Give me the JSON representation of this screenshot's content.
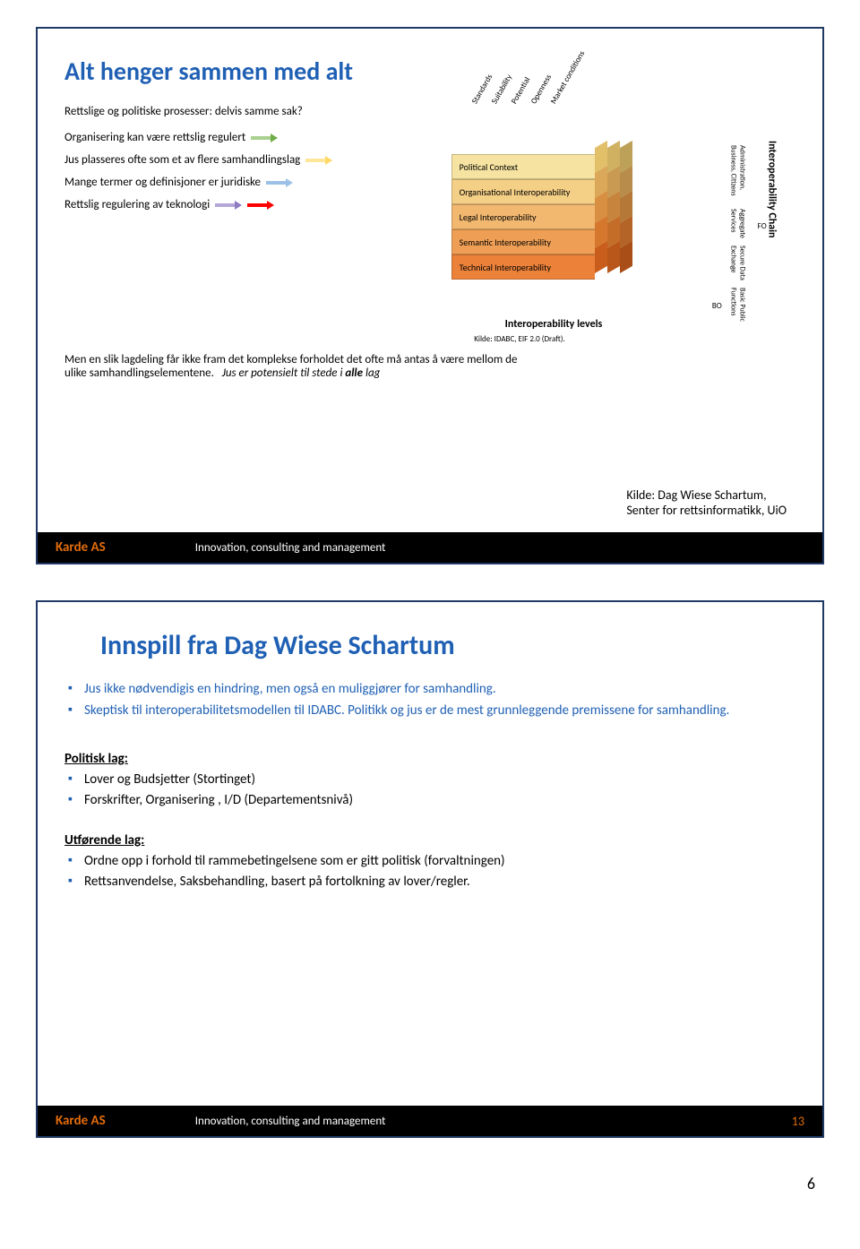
{
  "slide1": {
    "title": "Alt henger sammen med alt",
    "leftLines": [
      "Rettslige og politiske prosesser: delvis samme sak?",
      "Organisering kan være rettslig regulert",
      "Jus plasseres ofte som et av flere samhandlingslag",
      "Mange termer og definisjoner er juridiske",
      "Rettslig regulering av teknologi"
    ],
    "arrowColors": [
      "#a9d08e",
      "#ffd966",
      "#9bc2e6",
      "#b4a7d6",
      "#ff0000"
    ],
    "cube": {
      "topLabels": [
        "Standards",
        "Suitability",
        "Potential",
        "Openness",
        "Market conditions"
      ],
      "rightTitle": "Interoperability Chain",
      "rightLabels": [
        "Administration, Business, Citizens",
        "Aggregate Services",
        "Secure Data Exchange",
        "Basic Public Functions"
      ],
      "rows": [
        {
          "label": "Political Context",
          "fill": "#f6e3a1",
          "side": "#e2c06a"
        },
        {
          "label": "Organisational Interoperability",
          "fill": "#f4cf86",
          "side": "#dba758"
        },
        {
          "label": "Legal Interoperability",
          "fill": "#f2b870",
          "side": "#d88f41"
        },
        {
          "label": "Semantic Interoperability",
          "fill": "#ef9f55",
          "side": "#d5772d"
        },
        {
          "label": "Technical Interoperability",
          "fill": "#ec823a",
          "side": "#c95d1b"
        }
      ],
      "bottomLabel": "Interoperability levels",
      "fo": "FO",
      "bo": "BO"
    },
    "kildeSmall": "Kilde: IDABC, EIF 2.0 (Draft).",
    "para1a": "Men en slik lagdeling får ikke fram det komplekse forholdet det ofte må antas å være mellom de",
    "para1b": "ulike samhandlingselementene.",
    "para2": "Jus er potensielt til stede i alle lag",
    "kildeRight1": "Kilde: Dag Wiese Schartum,",
    "kildeRight2": "Senter for rettsinformatikk, UiO",
    "footerCompany": "Karde AS",
    "footerText": "Innovation, consulting and management"
  },
  "slide2": {
    "title": "Innspill fra Dag Wiese Schartum",
    "intro": [
      "Jus ikke nødvendigis en hindring, men også en muliggjører for samhandling.",
      "Skeptisk til interoperabilitetsmodellen til IDABC. Politikk og jus er de mest grunnleggende premissene for samhandling."
    ],
    "section1Label": "Politisk lag:",
    "section1": [
      "Lover og Budsjetter (Stortinget)",
      "Forskrifter, Organisering , I/D (Departementsnivå)"
    ],
    "section2Label": "Utførende lag:",
    "section2": [
      "Ordne opp i forhold til rammebetingelsene som er gitt politisk (forvaltningen)",
      "Rettsanvendelse, Saksbehandling, basert på fortolkning av lover/regler."
    ],
    "footerCompany": "Karde AS",
    "footerText": "Innovation, consulting and management",
    "footerPage": "13"
  },
  "pageNumber": "6"
}
